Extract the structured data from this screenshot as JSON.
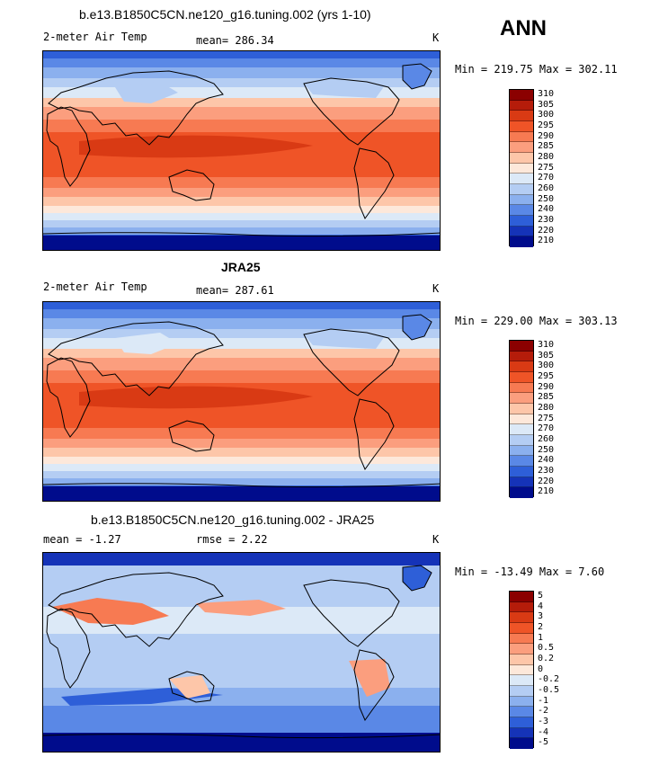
{
  "header": {
    "season": "ANN"
  },
  "chart_data": [
    {
      "type": "heatmap",
      "title": "b.e13.B1850C5CN.ne120_g16.tuning.002 (yrs 1-10)",
      "variable": "2-meter Air Temp",
      "mean_label": "mean= 286.34",
      "units": "K",
      "minmax_label": "Min = 219.75 Max = 302.11",
      "min": 219.75,
      "max": 302.11,
      "mean": 286.34,
      "levels": [
        "310",
        "305",
        "300",
        "295",
        "290",
        "285",
        "280",
        "275",
        "270",
        "260",
        "250",
        "240",
        "230",
        "220",
        "210"
      ],
      "colors": [
        "#8b0000",
        "#b51c0a",
        "#d93a14",
        "#ef5427",
        "#f77a52",
        "#fb9e7e",
        "#fdc6a9",
        "#fde8da",
        "#dce9f7",
        "#b4cdf3",
        "#8bb0ee",
        "#5a88e6",
        "#2e5fd8",
        "#1533b8",
        "#000c8c"
      ]
    },
    {
      "type": "heatmap",
      "title": "JRA25",
      "variable": "2-meter Air Temp",
      "mean_label": "mean= 287.61",
      "units": "K",
      "minmax_label": "Min = 229.00 Max = 303.13",
      "min": 229.0,
      "max": 303.13,
      "mean": 287.61,
      "levels": [
        "310",
        "305",
        "300",
        "295",
        "290",
        "285",
        "280",
        "275",
        "270",
        "260",
        "250",
        "240",
        "230",
        "220",
        "210"
      ],
      "colors": [
        "#8b0000",
        "#b51c0a",
        "#d93a14",
        "#ef5427",
        "#f77a52",
        "#fb9e7e",
        "#fdc6a9",
        "#fde8da",
        "#dce9f7",
        "#b4cdf3",
        "#8bb0ee",
        "#5a88e6",
        "#2e5fd8",
        "#1533b8",
        "#000c8c"
      ]
    },
    {
      "type": "heatmap",
      "title": "b.e13.B1850C5CN.ne120_g16.tuning.002 - JRA25",
      "variable": "",
      "mean_label": "mean =   -1.27",
      "rmse_label": "rmse =    2.22",
      "units": "K",
      "minmax_label": "Min = -13.49 Max =   7.60",
      "min": -13.49,
      "max": 7.6,
      "mean": -1.27,
      "rmse": 2.22,
      "levels": [
        "5",
        "4",
        "3",
        "2",
        "1",
        "0.5",
        "0.2",
        "0",
        "-0.2",
        "-0.5",
        "-1",
        "-2",
        "-3",
        "-4",
        "-5"
      ],
      "colors": [
        "#8b0000",
        "#b51c0a",
        "#d93a14",
        "#ef5427",
        "#f77a52",
        "#fb9e7e",
        "#fdc6a9",
        "#fde8da",
        "#dce9f7",
        "#b4cdf3",
        "#8bb0ee",
        "#5a88e6",
        "#2e5fd8",
        "#1533b8",
        "#000c8c"
      ]
    }
  ]
}
